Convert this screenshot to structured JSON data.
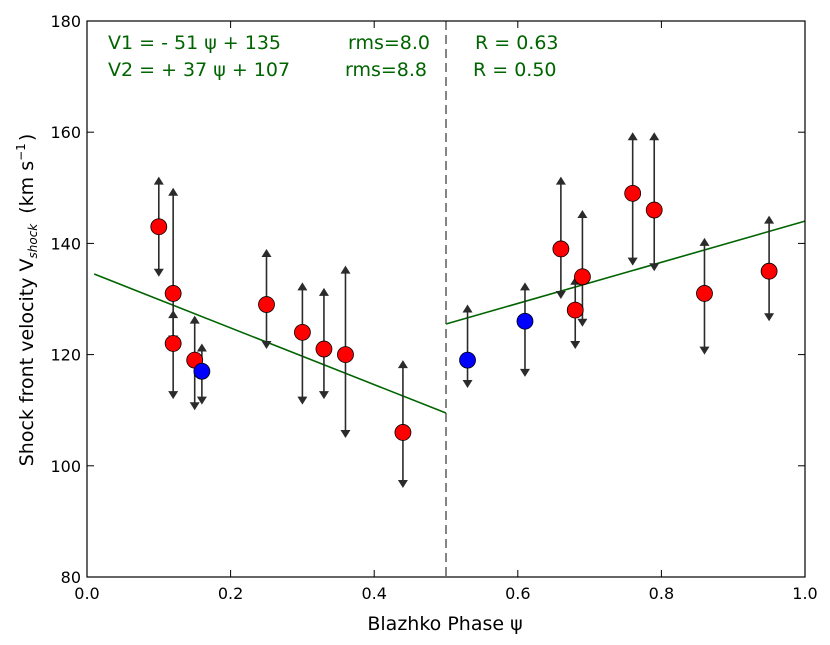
{
  "chart_data": {
    "type": "scatter",
    "xlabel": "Blazhko Phase ψ",
    "ylabel_main": "Shock front velocity V",
    "ylabel_sub": "shock",
    "ylabel_units": "(km s",
    "ylabel_units_exp": "−1",
    "ylabel_units_close": ")",
    "xlim": [
      0.0,
      1.0
    ],
    "ylim": [
      80,
      180
    ],
    "xticks": [
      0.0,
      0.2,
      0.4,
      0.6,
      0.8,
      1.0
    ],
    "xtick_labels": [
      "0.0",
      "0.2",
      "0.4",
      "0.6",
      "0.8",
      "1.0"
    ],
    "yticks": [
      80,
      100,
      120,
      140,
      160,
      180
    ],
    "ytick_labels": [
      "80",
      "100",
      "120",
      "140",
      "160",
      "180"
    ],
    "divider_x": 0.5,
    "colors": {
      "red": "#ff0000",
      "blue": "#0000ff",
      "fit": "#006400",
      "arrow": "#2b2b2b",
      "divider": "#777777",
      "annot": "#006400"
    },
    "fits": [
      {
        "name": "V1",
        "slope": -51,
        "intercept": 135,
        "x_range": [
          0.01,
          0.5
        ]
      },
      {
        "name": "V2",
        "slope": 37,
        "intercept": 107,
        "x_range": [
          0.5,
          1.0
        ]
      }
    ],
    "annotations": [
      {
        "line1": "V1 = - 51 ψ + 135",
        "rms": "rms=8.0",
        "r": "R = 0.63"
      },
      {
        "line1": "V2 = + 37 ψ + 107",
        "rms": "rms=8.8",
        "r": "R = 0.50"
      }
    ],
    "series": [
      {
        "name": "red",
        "points": [
          {
            "x": 0.1,
            "y": 143,
            "ylow": 134,
            "yhigh": 152
          },
          {
            "x": 0.12,
            "y": 131,
            "ylow": 122,
            "yhigh": 150
          },
          {
            "x": 0.12,
            "y": 122,
            "ylow": 112,
            "yhigh": 128
          },
          {
            "x": 0.15,
            "y": 119,
            "ylow": 110,
            "yhigh": 127
          },
          {
            "x": 0.25,
            "y": 129,
            "ylow": 121,
            "yhigh": 139
          },
          {
            "x": 0.3,
            "y": 124,
            "ylow": 111,
            "yhigh": 133
          },
          {
            "x": 0.33,
            "y": 121,
            "ylow": 112,
            "yhigh": 132
          },
          {
            "x": 0.36,
            "y": 120,
            "ylow": 105,
            "yhigh": 136
          },
          {
            "x": 0.44,
            "y": 106,
            "ylow": 96,
            "yhigh": 119
          },
          {
            "x": 0.66,
            "y": 139,
            "ylow": 130,
            "yhigh": 152
          },
          {
            "x": 0.68,
            "y": 128,
            "ylow": 121,
            "yhigh": 134
          },
          {
            "x": 0.69,
            "y": 134,
            "ylow": 125,
            "yhigh": 146
          },
          {
            "x": 0.76,
            "y": 149,
            "ylow": 136,
            "yhigh": 160
          },
          {
            "x": 0.79,
            "y": 146,
            "ylow": 135,
            "yhigh": 160
          },
          {
            "x": 0.86,
            "y": 131,
            "ylow": 120,
            "yhigh": 141
          },
          {
            "x": 0.95,
            "y": 135,
            "ylow": 126,
            "yhigh": 145
          }
        ]
      },
      {
        "name": "blue",
        "points": [
          {
            "x": 0.16,
            "y": 117,
            "ylow": 111,
            "yhigh": 122
          },
          {
            "x": 0.53,
            "y": 119,
            "ylow": 114,
            "yhigh": 129
          },
          {
            "x": 0.61,
            "y": 126,
            "ylow": 116,
            "yhigh": 133
          }
        ]
      }
    ]
  }
}
